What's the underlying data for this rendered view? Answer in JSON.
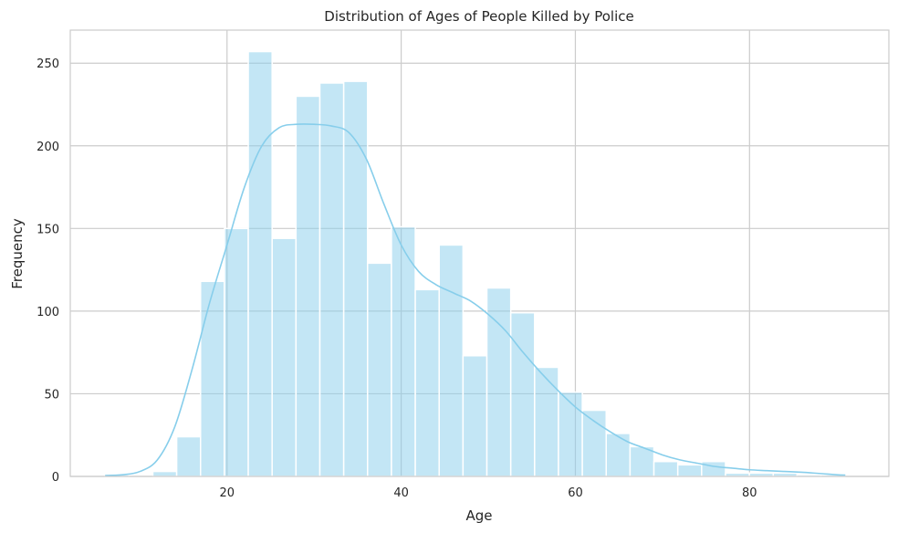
{
  "chart_data": {
    "type": "bar",
    "title": "Distribution of Ages of People Killed by Police",
    "xlabel": "Age",
    "ylabel": "Frequency",
    "xlim": [
      2,
      96
    ],
    "ylim": [
      0,
      270
    ],
    "xticks": [
      20,
      40,
      60,
      80
    ],
    "yticks": [
      0,
      50,
      100,
      150,
      200,
      250
    ],
    "grid": true,
    "colors": {
      "bar_fill": "#87CEEB",
      "bar_edge": "#ffffff",
      "kde_line": "#87CEEB",
      "grid": "#cccccc",
      "frame": "#cccccc"
    },
    "histogram": {
      "bins": [
        {
          "x0": 6.0,
          "x1": 8.74,
          "count": 1
        },
        {
          "x0": 8.74,
          "x1": 11.48,
          "count": 0
        },
        {
          "x0": 11.48,
          "x1": 14.22,
          "count": 3
        },
        {
          "x0": 14.22,
          "x1": 16.96,
          "count": 24
        },
        {
          "x0": 16.96,
          "x1": 19.7,
          "count": 118
        },
        {
          "x0": 19.7,
          "x1": 22.44,
          "count": 150
        },
        {
          "x0": 22.44,
          "x1": 25.18,
          "count": 257
        },
        {
          "x0": 25.18,
          "x1": 27.92,
          "count": 144
        },
        {
          "x0": 27.92,
          "x1": 30.66,
          "count": 230
        },
        {
          "x0": 30.66,
          "x1": 33.4,
          "count": 238
        },
        {
          "x0": 33.4,
          "x1": 36.14,
          "count": 239
        },
        {
          "x0": 36.14,
          "x1": 38.88,
          "count": 129
        },
        {
          "x0": 38.88,
          "x1": 41.62,
          "count": 151
        },
        {
          "x0": 41.62,
          "x1": 44.36,
          "count": 113
        },
        {
          "x0": 44.36,
          "x1": 47.1,
          "count": 140
        },
        {
          "x0": 47.1,
          "x1": 49.84,
          "count": 73
        },
        {
          "x0": 49.84,
          "x1": 52.58,
          "count": 114
        },
        {
          "x0": 52.58,
          "x1": 55.32,
          "count": 99
        },
        {
          "x0": 55.32,
          "x1": 58.06,
          "count": 66
        },
        {
          "x0": 58.06,
          "x1": 60.8,
          "count": 51
        },
        {
          "x0": 60.8,
          "x1": 63.54,
          "count": 40
        },
        {
          "x0": 63.54,
          "x1": 66.28,
          "count": 26
        },
        {
          "x0": 66.28,
          "x1": 69.02,
          "count": 18
        },
        {
          "x0": 69.02,
          "x1": 71.76,
          "count": 9
        },
        {
          "x0": 71.76,
          "x1": 74.5,
          "count": 7
        },
        {
          "x0": 74.5,
          "x1": 77.24,
          "count": 9
        },
        {
          "x0": 77.24,
          "x1": 79.98,
          "count": 2
        },
        {
          "x0": 79.98,
          "x1": 82.72,
          "count": 2
        },
        {
          "x0": 82.72,
          "x1": 85.46,
          "count": 2
        },
        {
          "x0": 85.46,
          "x1": 88.2,
          "count": 1
        },
        {
          "x0": 88.2,
          "x1": 90.94,
          "count": 1
        }
      ]
    },
    "kde": {
      "x": [
        6,
        8,
        10,
        12,
        14,
        16,
        18,
        20,
        22,
        24,
        26,
        28,
        30,
        32,
        34,
        36,
        38,
        40,
        42,
        44,
        46,
        48,
        50,
        52,
        54,
        56,
        58,
        60,
        62,
        64,
        66,
        68,
        70,
        72,
        74,
        76,
        78,
        80,
        82,
        84,
        86,
        88,
        90,
        91
      ],
      "y": [
        0.5,
        1,
        3,
        10,
        30,
        65,
        105,
        140,
        175,
        200,
        211,
        213,
        213,
        212,
        208,
        192,
        165,
        140,
        124,
        116,
        111,
        106,
        98,
        88,
        75,
        63,
        52,
        42,
        34,
        27,
        21,
        17,
        13,
        10,
        8,
        6,
        5,
        4,
        3.5,
        3,
        2.5,
        1.8,
        1,
        0.8
      ]
    }
  }
}
